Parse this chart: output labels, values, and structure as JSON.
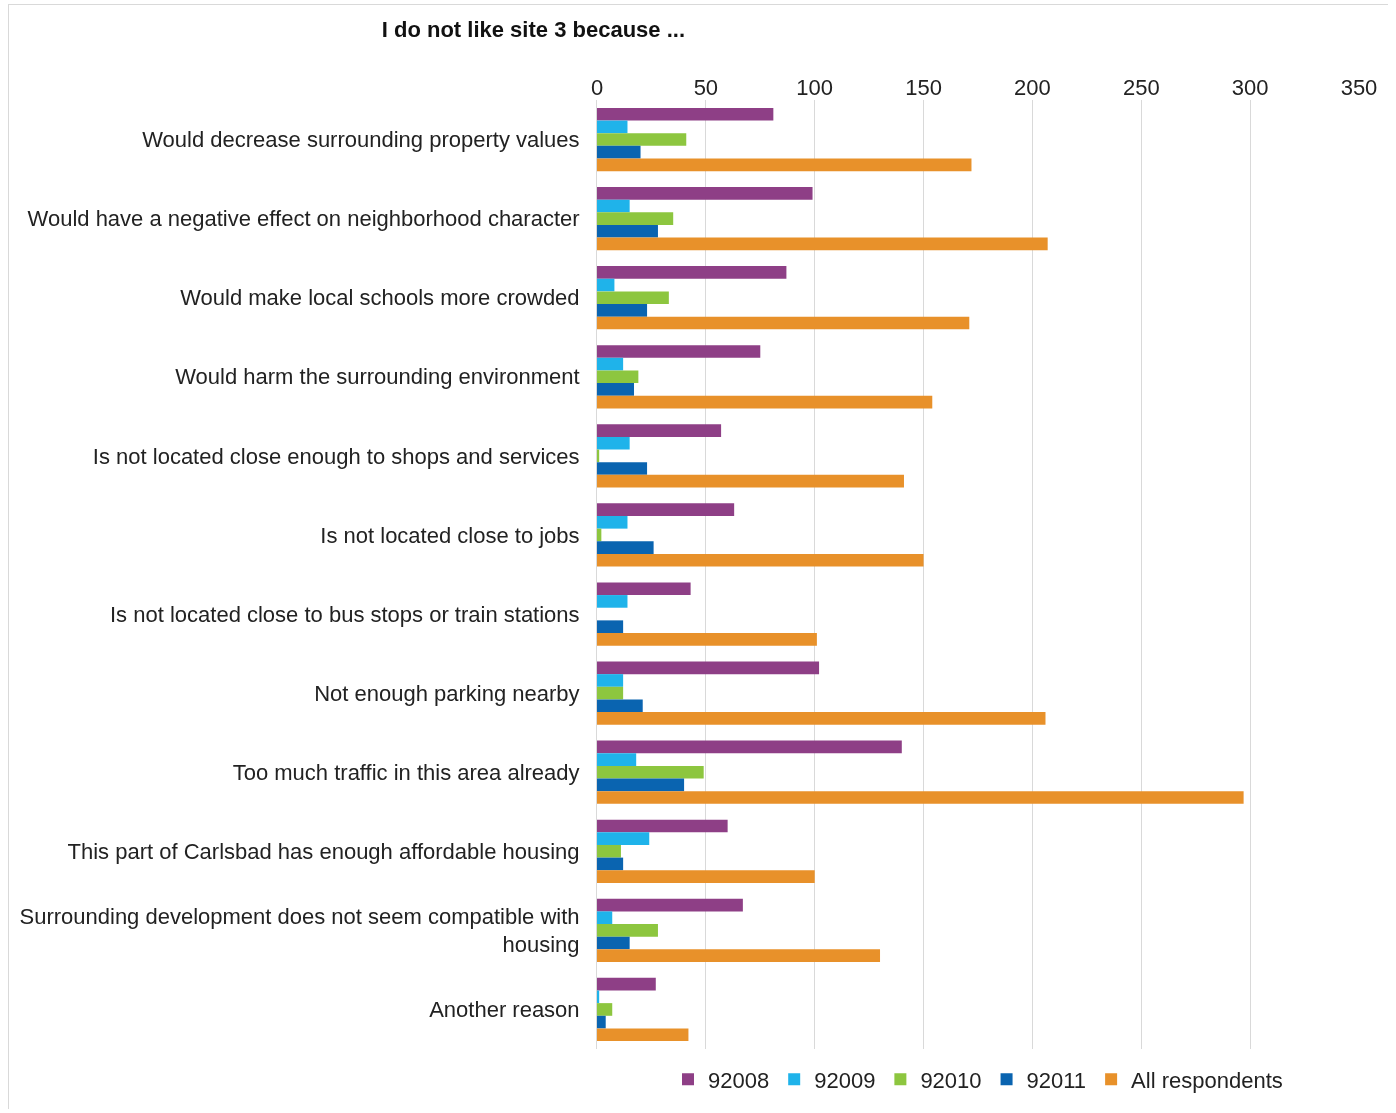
{
  "chart_data": {
    "type": "bar",
    "orientation": "horizontal",
    "title": "I do not like site 3 because ...",
    "categories": [
      "Would decrease surrounding property values",
      "Would have a negative effect on neighborhood character",
      "Would make local schools more crowded",
      "Would harm the surrounding environment",
      "Is not located close enough to shops and services",
      "Is not located close to jobs",
      "Is not located close to bus stops or train stations",
      "Not enough parking nearby",
      "Too much traffic in this area already",
      "This part of Carlsbad has enough affordable housing",
      "Surrounding development does not seem compatible with housing",
      "Another reason"
    ],
    "series": [
      {
        "name": "92008",
        "color": "#8e3f86",
        "values": [
          81,
          99,
          87,
          75,
          57,
          63,
          43,
          102,
          140,
          60,
          67,
          27
        ]
      },
      {
        "name": "92009",
        "color": "#1fb3ea",
        "values": [
          14,
          15,
          8,
          12,
          15,
          14,
          14,
          12,
          18,
          24,
          7,
          1
        ]
      },
      {
        "name": "92010",
        "color": "#8dc63f",
        "values": [
          41,
          35,
          33,
          19,
          1,
          2,
          0,
          12,
          49,
          11,
          28,
          7
        ]
      },
      {
        "name": "92011",
        "color": "#0a64b0",
        "values": [
          20,
          28,
          23,
          17,
          23,
          26,
          12,
          21,
          40,
          12,
          15,
          4
        ]
      },
      {
        "name": "All respondents",
        "color": "#e8912a",
        "values": [
          172,
          207,
          171,
          154,
          141,
          150,
          101,
          206,
          297,
          100,
          130,
          42
        ]
      }
    ],
    "xlim": [
      0,
      350
    ],
    "xticks": [
      0,
      50,
      100,
      150,
      200,
      250,
      300,
      350
    ],
    "grid": "x",
    "legend": "bottom"
  }
}
